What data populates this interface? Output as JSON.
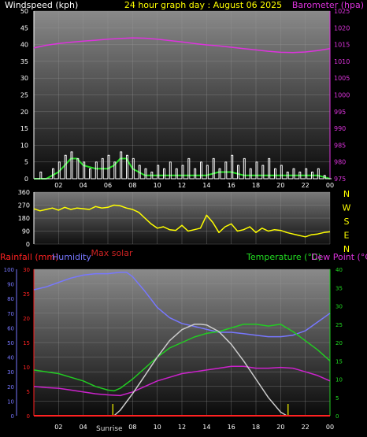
{
  "header": {
    "left_label": "Windspeed (kph)",
    "title": "24 hour graph day : August 06 2025",
    "right_label": "Barometer (hpa)"
  },
  "mid_header": {
    "max_solar": "Max solar"
  },
  "bottom_header": {
    "rainfall": "Rainfall (mm)",
    "humidity": "Humidity",
    "temperature": "Temperature (°C)",
    "dewpoint": "Dew Point (°C)",
    "sunrise": "Sunrise"
  },
  "colors": {
    "wind_avg": "#22dd22",
    "wind_gust": "#ffffff",
    "wind_avg_fill": "#dddd00",
    "barometer": "#dd33dd",
    "direction": "#ffff00",
    "rain": "#ff2222",
    "humidity": "#7777ff",
    "temperature": "#22cc22",
    "dewpoint": "#cc22cc",
    "solar": "#cccccc",
    "marker": "#cccc00"
  },
  "chart_data": [
    {
      "type": "line",
      "title": "24 hour graph day : August 06 2025",
      "x_ticks": [
        "02",
        "04",
        "06",
        "08",
        "10",
        "12",
        "14",
        "16",
        "18",
        "20",
        "22",
        "00"
      ],
      "x_hours": [
        0,
        24
      ],
      "left_axis": {
        "label": "Windspeed (kph)",
        "range": [
          0,
          50
        ],
        "ticks": [
          "0",
          "5",
          "10",
          "15",
          "20",
          "25",
          "30",
          "35",
          "40",
          "45",
          "50"
        ]
      },
      "right_axis": {
        "label": "Barometer (hpa)",
        "range": [
          975,
          1025
        ],
        "ticks": [
          "975",
          "980",
          "985",
          "990",
          "995",
          "1000",
          "1005",
          "1010",
          "1015",
          "1020",
          "1025"
        ]
      },
      "series": [
        {
          "name": "Barometer (hpa)",
          "axis": "right",
          "x": [
            0,
            1,
            2,
            3,
            4,
            5,
            6,
            7,
            8,
            9,
            10,
            11,
            12,
            13,
            14,
            15,
            16,
            17,
            18,
            19,
            20,
            21,
            22,
            23,
            24
          ],
          "y": [
            1014.0,
            1014.8,
            1015.3,
            1015.7,
            1016.0,
            1016.3,
            1016.6,
            1016.8,
            1017.0,
            1016.9,
            1016.6,
            1016.2,
            1015.8,
            1015.3,
            1014.9,
            1014.6,
            1014.2,
            1013.8,
            1013.4,
            1013.0,
            1012.7,
            1012.6,
            1012.8,
            1013.2,
            1013.8
          ]
        },
        {
          "name": "Windspeed avg",
          "axis": "left",
          "x": [
            0,
            1,
            2,
            2.5,
            3,
            3.5,
            4,
            5,
            6,
            6.5,
            7,
            7.5,
            8,
            8.5,
            9,
            10,
            11,
            12,
            13,
            14,
            15,
            16,
            17,
            18,
            19,
            20,
            21,
            22,
            23,
            24
          ],
          "y": [
            0,
            0,
            2,
            4,
            6,
            6,
            4,
            3,
            3,
            4,
            6,
            6,
            3,
            2,
            1,
            1,
            1,
            1,
            1,
            1,
            2,
            2,
            1,
            1,
            1,
            1,
            1,
            1,
            1,
            0
          ]
        },
        {
          "name": "Windspeed gust",
          "axis": "left",
          "x": [
            0,
            0.5,
            1,
            1.5,
            2,
            2.5,
            3,
            3.5,
            4,
            4.5,
            5,
            5.5,
            6,
            6.5,
            7,
            7.5,
            8,
            8.5,
            9,
            9.5,
            10,
            10.5,
            11,
            11.5,
            12,
            12.5,
            13,
            13.5,
            14,
            14.5,
            15,
            15.5,
            16,
            16.5,
            17,
            17.5,
            18,
            18.5,
            19,
            19.5,
            20,
            20.5,
            21,
            21.5,
            22,
            22.5,
            23,
            23.5,
            24
          ],
          "y": [
            0,
            2,
            0,
            3,
            5,
            7,
            8,
            6,
            5,
            3,
            5,
            6,
            7,
            5,
            8,
            7,
            6,
            4,
            3,
            2,
            4,
            3,
            5,
            3,
            4,
            6,
            3,
            5,
            4,
            6,
            3,
            5,
            7,
            4,
            6,
            3,
            5,
            4,
            6,
            3,
            4,
            2,
            3,
            2,
            3,
            2,
            3,
            1,
            0
          ]
        }
      ]
    },
    {
      "type": "line",
      "x_hours": [
        0,
        24
      ],
      "left_axis": {
        "range": [
          0,
          360
        ],
        "ticks": [
          "0",
          "90",
          "180",
          "270",
          "360"
        ]
      },
      "right_labels": [
        "N",
        "W",
        "S",
        "E",
        "N"
      ],
      "series": [
        {
          "name": "Wind direction",
          "x": [
            0,
            0.5,
            1,
            1.5,
            2,
            2.5,
            3,
            3.5,
            4,
            4.5,
            5,
            5.5,
            6,
            6.5,
            7,
            7.5,
            8,
            8.5,
            9,
            9.5,
            10,
            10.5,
            11,
            11.5,
            12,
            12.5,
            13,
            13.5,
            14,
            14.5,
            15,
            15.5,
            16,
            16.5,
            17,
            17.5,
            18,
            18.5,
            19,
            19.5,
            20,
            20.5,
            21,
            21.5,
            22,
            22.5,
            23,
            23.5,
            24
          ],
          "y": [
            245,
            230,
            240,
            250,
            235,
            255,
            240,
            250,
            245,
            240,
            260,
            250,
            255,
            270,
            265,
            250,
            240,
            220,
            180,
            140,
            110,
            120,
            100,
            95,
            130,
            90,
            100,
            110,
            200,
            150,
            80,
            120,
            140,
            90,
            100,
            120,
            80,
            110,
            90,
            100,
            95,
            80,
            70,
            60,
            50,
            65,
            70,
            80,
            85
          ]
        }
      ]
    },
    {
      "type": "line",
      "x_ticks": [
        "02",
        "04",
        "06",
        "08",
        "10",
        "12",
        "14",
        "16",
        "18",
        "20",
        "22",
        "00"
      ],
      "x_hours": [
        0,
        24
      ],
      "axes": {
        "humidity": {
          "range": [
            0,
            100
          ],
          "ticks": [
            "0",
            "10",
            "20",
            "30",
            "40",
            "50",
            "60",
            "70",
            "80",
            "90",
            "100"
          ]
        },
        "rainfall": {
          "range": [
            0,
            30
          ],
          "ticks": [
            "0",
            "5",
            "10",
            "15",
            "20",
            "25",
            "30"
          ]
        },
        "temperature": {
          "range": [
            0,
            40
          ],
          "ticks": [
            "0",
            "5",
            "10",
            "15",
            "20",
            "25",
            "30",
            "35",
            "40"
          ]
        }
      },
      "series": [
        {
          "name": "Humidity",
          "axis": "humidity",
          "x": [
            0,
            1,
            2,
            3,
            4,
            5,
            6,
            7,
            7.5,
            8,
            9,
            10,
            11,
            12,
            13,
            14,
            15,
            16,
            17,
            18,
            19,
            20,
            21,
            22,
            23,
            24
          ],
          "y": [
            86,
            88,
            91,
            94,
            96,
            97,
            97,
            98,
            98,
            95,
            85,
            74,
            67,
            63,
            61,
            59,
            57,
            57,
            56,
            55,
            54,
            54,
            55,
            58,
            64,
            70
          ]
        },
        {
          "name": "Temperature (°C)",
          "axis": "temperature",
          "x": [
            0,
            1,
            2,
            3,
            4,
            5,
            6,
            6.5,
            7,
            8,
            9,
            10,
            11,
            12,
            13,
            14,
            15,
            16,
            17,
            18,
            19,
            20,
            21,
            22,
            23,
            24
          ],
          "y": [
            12.5,
            12,
            11.5,
            10.5,
            9.5,
            8,
            7,
            6.8,
            7.5,
            10,
            13,
            16,
            18.5,
            20,
            21.5,
            22.5,
            23,
            24,
            25,
            25,
            24.5,
            25,
            23,
            20.5,
            18,
            15
          ]
        },
        {
          "name": "Dew Point (°C)",
          "axis": "temperature",
          "x": [
            0,
            1,
            2,
            3,
            4,
            5,
            6,
            7,
            8,
            9,
            10,
            11,
            12,
            13,
            14,
            15,
            16,
            17,
            18,
            19,
            20,
            21,
            22,
            23,
            24
          ],
          "y": [
            8,
            7.7,
            7.5,
            7,
            6.5,
            6,
            5.7,
            5.5,
            6.5,
            8,
            9.5,
            10.5,
            11.5,
            12,
            12.5,
            13,
            13.5,
            13.5,
            13,
            13,
            13.2,
            13,
            12,
            11,
            9.5
          ]
        },
        {
          "name": "Max solar",
          "axis": "temperature",
          "x": [
            6.5,
            7,
            8,
            9,
            10,
            11,
            12,
            13,
            13.5,
            14,
            15,
            16,
            17,
            18,
            19,
            20,
            20.5
          ],
          "y": [
            0,
            1.5,
            6,
            11,
            16,
            20.5,
            23.5,
            25,
            25,
            24.8,
            23,
            19.5,
            15,
            10,
            5,
            1,
            0
          ]
        },
        {
          "name": "Rainfall (mm)",
          "axis": "rainfall",
          "x": [
            0,
            24
          ],
          "y": [
            0,
            0
          ]
        }
      ]
    }
  ]
}
